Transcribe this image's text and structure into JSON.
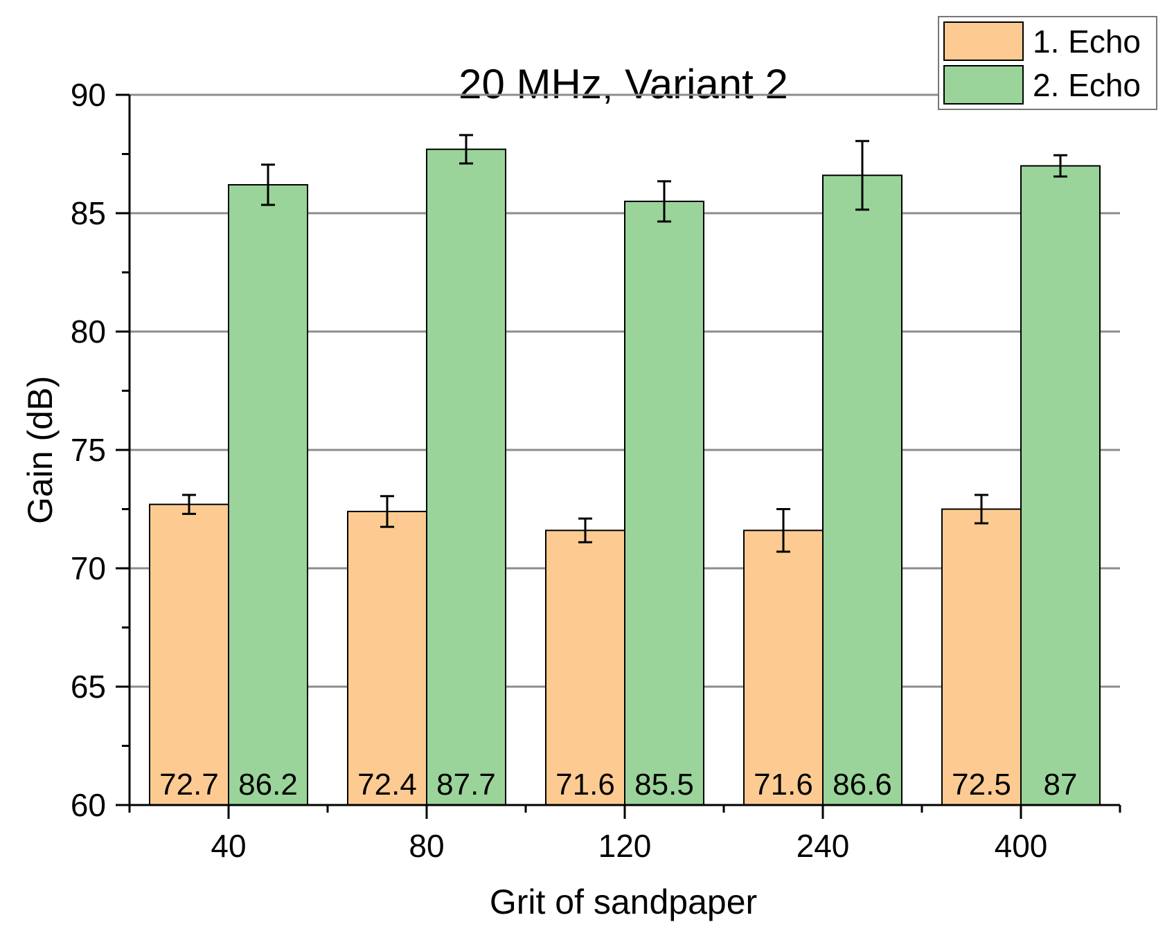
{
  "chart_data": {
    "type": "bar",
    "title": "20 MHz, Variant 2",
    "xlabel": "Grit of sandpaper",
    "ylabel": "Gain (dB)",
    "ylim": [
      60,
      90
    ],
    "yticks": [
      60,
      65,
      70,
      75,
      80,
      85,
      90
    ],
    "ytick_labels": [
      "60",
      "65",
      "70",
      "75",
      "80",
      "85",
      "90"
    ],
    "grid": true,
    "legend_position": "top-right",
    "categories": [
      "40",
      "80",
      "120",
      "240",
      "400"
    ],
    "series": [
      {
        "name": "1. Echo",
        "color": "#fdcb92",
        "values": [
          72.7,
          72.4,
          71.6,
          71.6,
          72.5
        ],
        "errors": [
          0.4,
          0.65,
          0.5,
          0.9,
          0.6
        ],
        "labels": [
          "72.7",
          "72.4",
          "71.6",
          "71.6",
          "72.5"
        ]
      },
      {
        "name": "2. Echo",
        "color": "#9ad49a",
        "values": [
          86.2,
          87.7,
          85.5,
          86.6,
          87.0
        ],
        "errors": [
          0.85,
          0.6,
          0.85,
          1.45,
          0.45
        ],
        "labels": [
          "86.2",
          "87.7",
          "85.5",
          "86.6",
          "87"
        ]
      }
    ]
  }
}
